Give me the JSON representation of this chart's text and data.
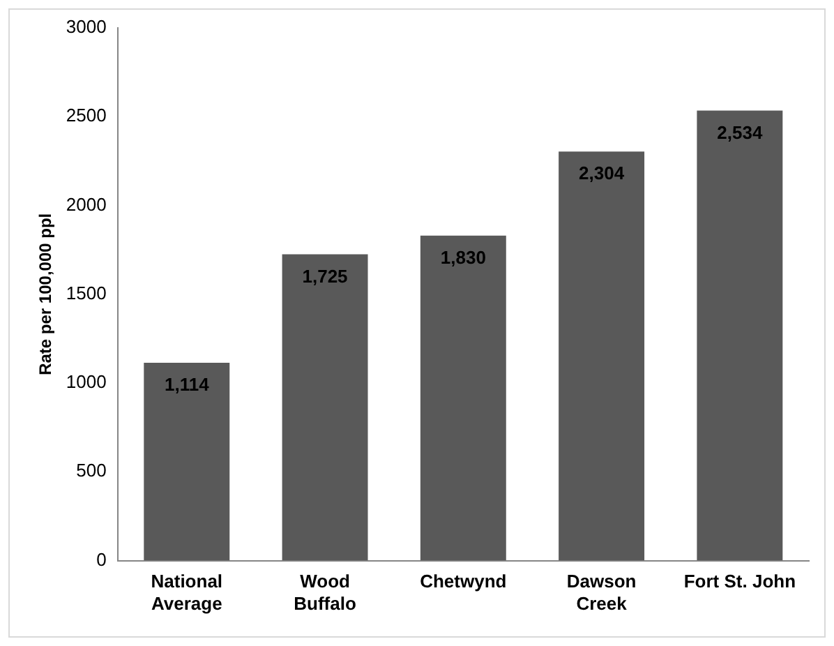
{
  "chart_data": {
    "type": "bar",
    "ylabel": "Rate per 100,000 ppl",
    "categories": [
      "National Average",
      "Wood Buffalo",
      "Chetwynd",
      "Dawson Creek",
      "Fort St. John"
    ],
    "values": [
      1114,
      1725,
      1830,
      2304,
      2534
    ],
    "value_labels": [
      "1,114",
      "1,725",
      "1,830",
      "2,304",
      "2,534"
    ],
    "color": "#595959",
    "ylim": [
      0,
      3000
    ],
    "yticks": [
      0,
      500,
      1000,
      1500,
      2000,
      2500,
      3000
    ],
    "grid": false,
    "legend": false
  }
}
